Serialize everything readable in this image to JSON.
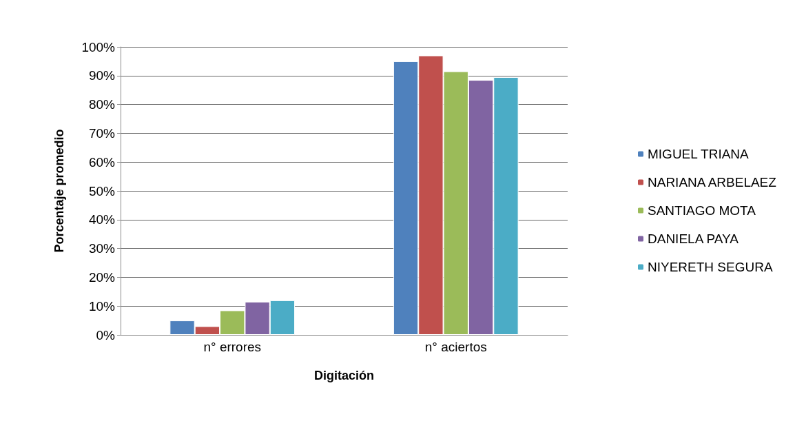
{
  "chart_data": {
    "type": "bar",
    "xlabel": "Digitación",
    "ylabel": "Porcentaje promedio",
    "categories": [
      "n° errores",
      "n° aciertos"
    ],
    "series": [
      {
        "name": "MIGUEL TRIANA",
        "color": "#4f81bd",
        "values": [
          5,
          95
        ]
      },
      {
        "name": "NARIANA ARBELAEZ",
        "color": "#c0504d",
        "values": [
          3,
          97
        ]
      },
      {
        "name": "SANTIAGO MOTA",
        "color": "#9bbb59",
        "values": [
          8.5,
          91.5
        ]
      },
      {
        "name": "DANIELA PAYA",
        "color": "#8064a2",
        "values": [
          11.5,
          88.5
        ]
      },
      {
        "name": "NIYERETH SEGURA",
        "color": "#4bacc6",
        "values": [
          12,
          89.5
        ]
      }
    ],
    "ylim": [
      0,
      100
    ],
    "yticks": [
      {
        "value": 0,
        "label": "0%"
      },
      {
        "value": 10,
        "label": "10%"
      },
      {
        "value": 20,
        "label": "20%"
      },
      {
        "value": 30,
        "label": "30%"
      },
      {
        "value": 40,
        "label": "40%"
      },
      {
        "value": 50,
        "label": "50%"
      },
      {
        "value": 60,
        "label": "60%"
      },
      {
        "value": 70,
        "label": "70%"
      },
      {
        "value": 80,
        "label": "80%"
      },
      {
        "value": 90,
        "label": "90%"
      },
      {
        "value": 100,
        "label": "100%"
      }
    ],
    "grid": "y",
    "legend": "right"
  }
}
